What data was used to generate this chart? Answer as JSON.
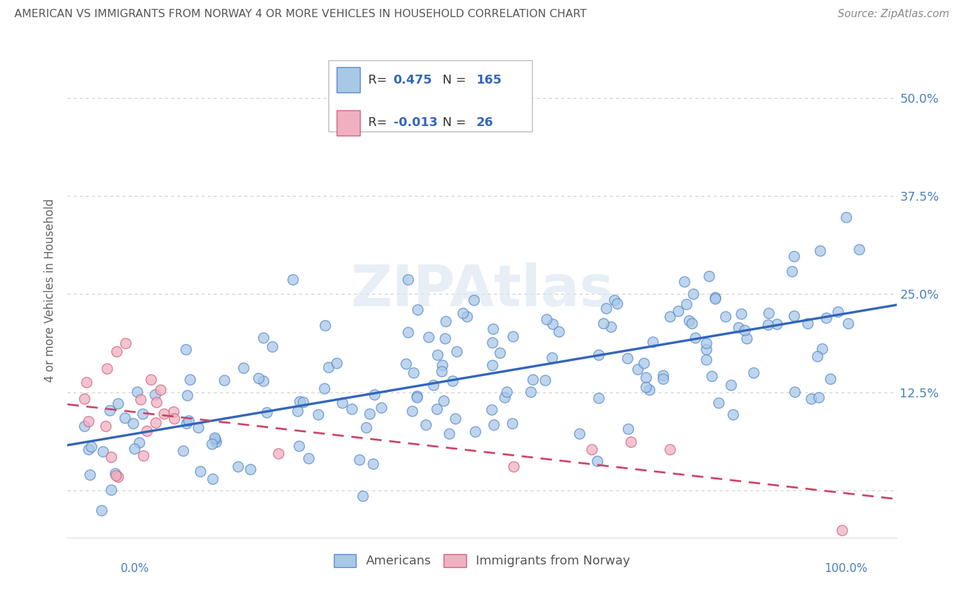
{
  "title": "AMERICAN VS IMMIGRANTS FROM NORWAY 4 OR MORE VEHICLES IN HOUSEHOLD CORRELATION CHART",
  "source": "Source: ZipAtlas.com",
  "ylabel": "4 or more Vehicles in Household",
  "ytick_values": [
    0.0,
    0.125,
    0.25,
    0.375,
    0.5
  ],
  "ytick_labels": [
    "",
    "12.5%",
    "25.0%",
    "37.5%",
    "50.0%"
  ],
  "xlim": [
    -0.02,
    1.04
  ],
  "ylim": [
    -0.06,
    0.57
  ],
  "watermark": "ZIPAtlas",
  "legend": {
    "r_american": 0.475,
    "n_american": 165,
    "r_norway": -0.013,
    "n_norway": 26
  },
  "am_color": "#a8c8e8",
  "am_edge": "#5588cc",
  "no_color": "#f0b0c0",
  "no_edge": "#d06080",
  "am_line_color": "#3366bb",
  "no_line_color": "#cc4466",
  "background_color": "#ffffff",
  "grid_color": "#cccccc",
  "watermark_color": "#d8e4f0",
  "title_color": "#555555",
  "source_color": "#888888",
  "ytick_color": "#4a7fc0",
  "legend_label_am": "Americans",
  "legend_label_no": "Immigrants from Norway"
}
